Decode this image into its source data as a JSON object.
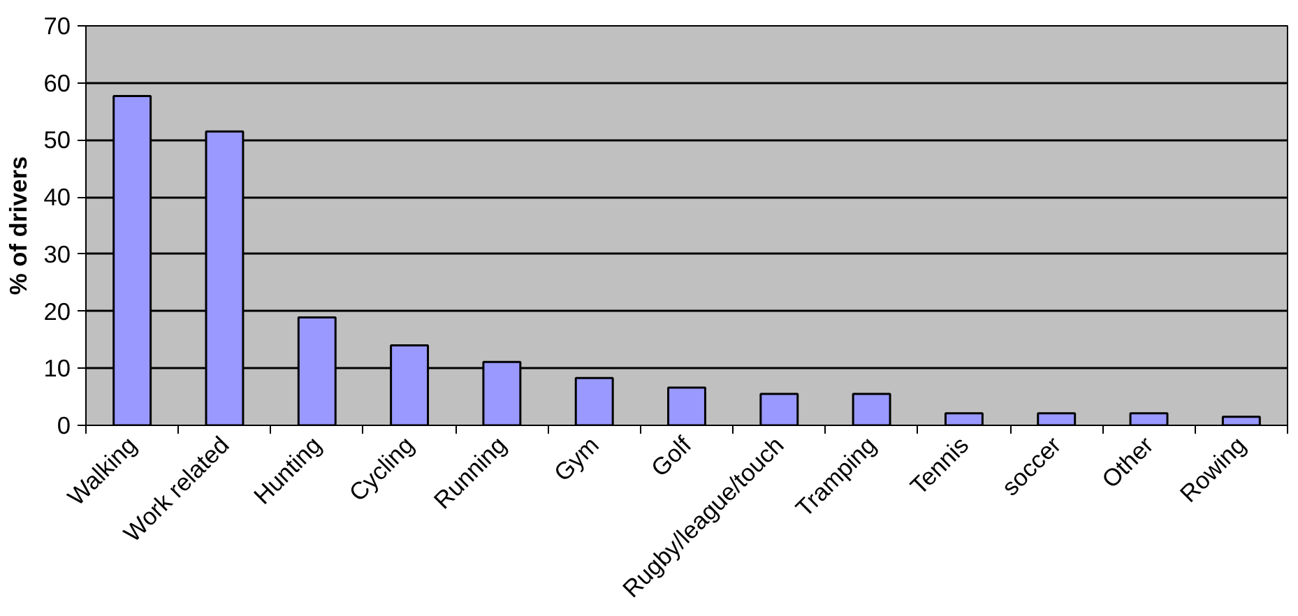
{
  "chart_data": {
    "type": "bar",
    "ylabel": "% of drivers",
    "categories": [
      "Walking",
      "Work related",
      "Hunting",
      "Cycling",
      "Running",
      "Gym",
      "Golf",
      "Rugby/league/touch",
      "Tramping",
      "Tennis",
      "soccer",
      "Other",
      "Rowing"
    ],
    "values": [
      57.7,
      51.5,
      18.9,
      14,
      11.1,
      8.3,
      6.6,
      5.5,
      5.5,
      2.1,
      2.1,
      2.1,
      1.5
    ],
    "color": "#9999ff",
    "ylim": [
      0,
      70
    ],
    "yticks": [
      0,
      10,
      20,
      30,
      40,
      50,
      60,
      70
    ],
    "grid": "y"
  }
}
